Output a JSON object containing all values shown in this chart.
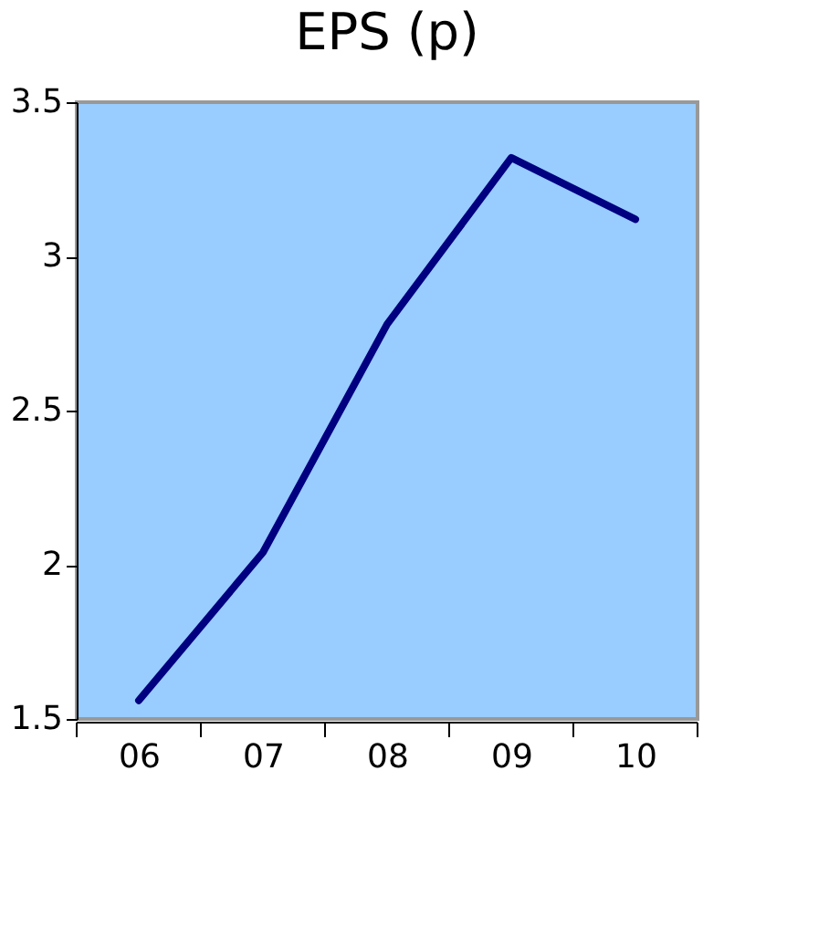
{
  "chart_data": {
    "type": "line",
    "title": "EPS (p)",
    "categories": [
      "06",
      "07",
      "08",
      "09",
      "10"
    ],
    "series": [
      {
        "color": "#000080",
        "values": [
          1.56,
          2.04,
          2.78,
          3.32,
          3.12
        ]
      }
    ],
    "ylim": [
      1.5,
      3.5
    ],
    "yticks": [
      1.5,
      2,
      2.5,
      3,
      3.5
    ],
    "grid": false,
    "marker": "none",
    "line_style": "solid"
  }
}
